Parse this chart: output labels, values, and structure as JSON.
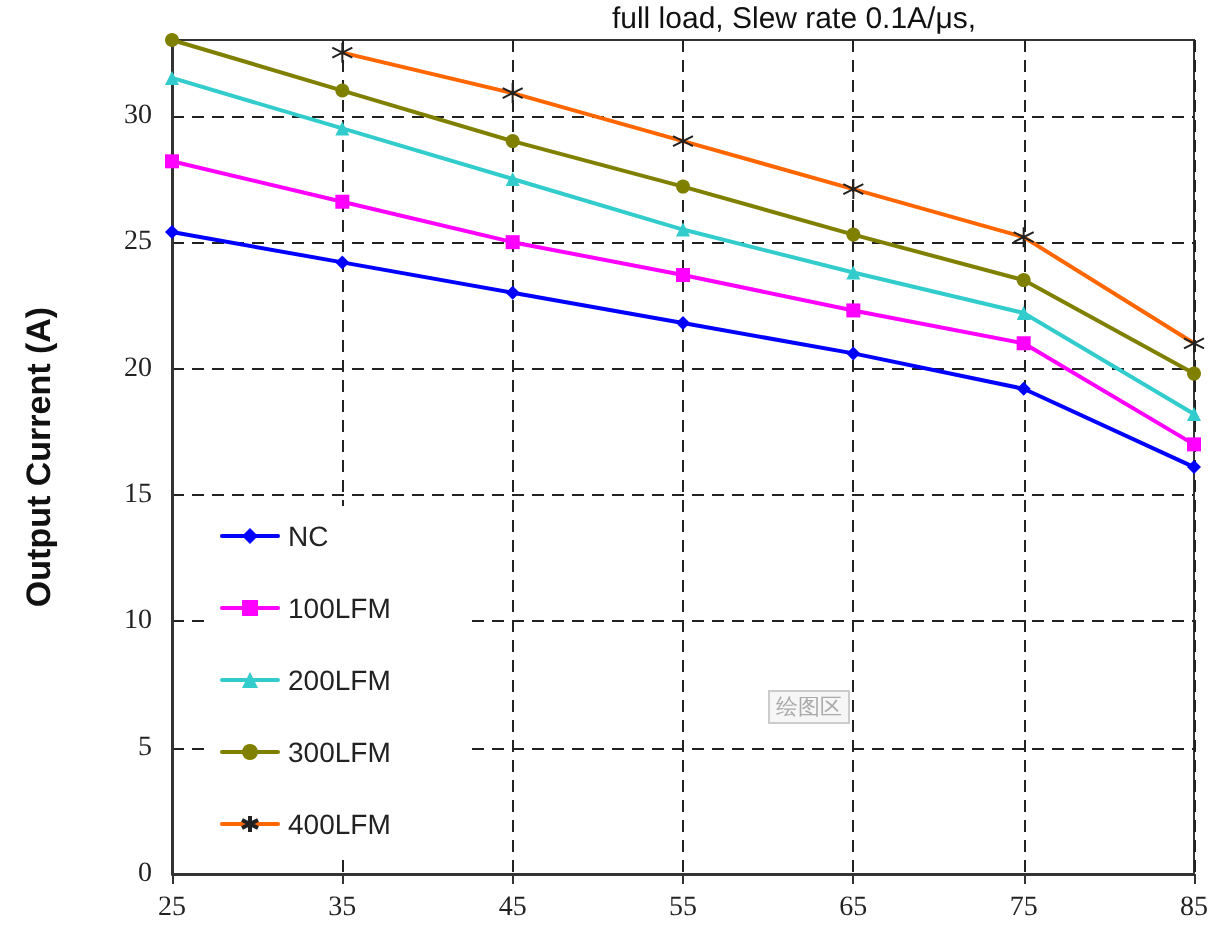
{
  "chart_data": {
    "type": "line",
    "title": "full load, Slew rate 0.1A/μs,",
    "ylabel": "Output Current (A)",
    "x": [
      25,
      35,
      45,
      55,
      65,
      75,
      85
    ],
    "xlim": [
      25,
      85
    ],
    "xticks": [
      25,
      35,
      45,
      55,
      65,
      75,
      85
    ],
    "ylim": [
      0,
      33
    ],
    "yticks": [
      0,
      5,
      10,
      15,
      20,
      25,
      30
    ],
    "grid": true,
    "legend": "bottom left",
    "line_style": "solid",
    "annotations": [
      "绘图区"
    ],
    "series": [
      {
        "name": "NC",
        "color": "#0000ff",
        "marker": "diamond",
        "values": [
          25.4,
          24.2,
          23.0,
          21.8,
          20.6,
          19.2,
          16.1
        ]
      },
      {
        "name": "100LFM",
        "color": "#ff00ff",
        "marker": "square",
        "values": [
          28.2,
          26.6,
          25.0,
          23.7,
          22.3,
          21.0,
          17.0
        ]
      },
      {
        "name": "200LFM",
        "color": "#33cccc",
        "marker": "triangle",
        "values": [
          31.5,
          29.5,
          27.5,
          25.5,
          23.8,
          22.2,
          18.2
        ]
      },
      {
        "name": "300LFM",
        "color": "#808000",
        "marker": "circle",
        "values": [
          33.0,
          31.0,
          29.0,
          27.2,
          25.3,
          23.5,
          19.8
        ]
      },
      {
        "name": "400LFM",
        "color": "#ff6600",
        "marker": "cross",
        "values": [
          null,
          32.5,
          30.9,
          29.0,
          27.1,
          25.2,
          21.0
        ]
      }
    ]
  }
}
